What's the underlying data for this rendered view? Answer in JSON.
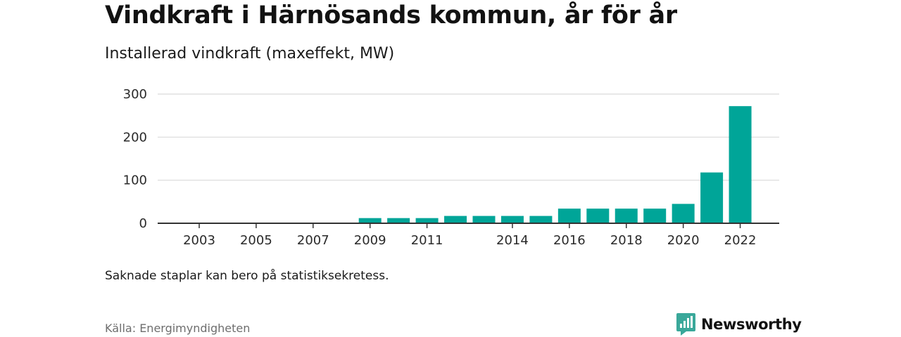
{
  "header": {
    "title": "Vindkraft i Härnösands kommun, år för år",
    "subtitle": "Installerad vindkraft (maxeffekt, MW)"
  },
  "footer": {
    "note": "Saknade staplar kan bero på statistiksekretess.",
    "source": "Källa: Energimyndigheten",
    "brand_name": "Newsworthy",
    "brand_icon": "newsworthy-logo-icon"
  },
  "colors": {
    "bar": "#00a598",
    "brand": "#3aa89a",
    "grid": "#d9d9d9",
    "axis": "#333333"
  },
  "chart_data": {
    "type": "bar",
    "title": "Vindkraft i Härnösands kommun, år för år",
    "subtitle": "Installerad vindkraft (maxeffekt, MW)",
    "xlabel": "",
    "ylabel": "",
    "categories": [
      "2003",
      "2004",
      "2005",
      "2006",
      "2007",
      "2008",
      "2009",
      "2010",
      "2011",
      "2012",
      "2013",
      "2014",
      "2015",
      "2016",
      "2017",
      "2018",
      "2019",
      "2020",
      "2021",
      "2022"
    ],
    "values": [
      null,
      null,
      null,
      null,
      null,
      null,
      12,
      12,
      12,
      17,
      17,
      17,
      17,
      34,
      34,
      34,
      34,
      45,
      118,
      272
    ],
    "x_tick_labels": [
      "2003",
      "2005",
      "2007",
      "2009",
      "2011",
      "2014",
      "2016",
      "2018",
      "2020",
      "2022"
    ],
    "yticks": [
      "0",
      "100",
      "200",
      "300"
    ],
    "ylim": [
      0,
      300
    ],
    "grid": true,
    "legend": "none"
  }
}
